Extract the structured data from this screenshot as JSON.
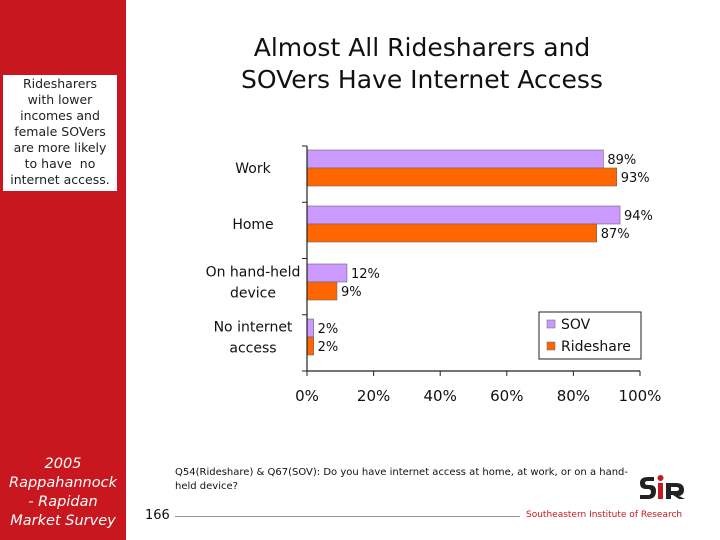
{
  "title_line1": "Almost All Ridesharers and",
  "title_line2": "SOVers Have Internet Access",
  "sidebar": {
    "note_lines": [
      "Ridesharers",
      "with lower",
      "incomes and",
      "female SOVers",
      "are more likely",
      "to have  no",
      "internet access."
    ],
    "survey_lines": [
      "2005",
      "Rappahannock",
      "- Rapidan",
      "Market Survey"
    ]
  },
  "footer": {
    "question": "Q54(Rideshare) & Q67(SOV): Do you have internet access at home, at work, or on a hand-held device?",
    "page_number": "166",
    "organization": "Southeastern Institute of Research"
  },
  "colors": {
    "sov": "#cc99ff",
    "rideshare": "#ff6600",
    "brand_red": "#c8171f"
  },
  "logo_icon": "sir-logo-icon",
  "chart_data": {
    "type": "bar",
    "orientation": "horizontal",
    "title": "Almost All Ridesharers and SOVers Have Internet Access",
    "categories": [
      {
        "lines": [
          "Work"
        ]
      },
      {
        "lines": [
          "Home"
        ]
      },
      {
        "lines": [
          "On hand-held",
          "device"
        ]
      },
      {
        "lines": [
          "No internet",
          "access"
        ]
      }
    ],
    "series": [
      {
        "name": "SOV",
        "color": "#cc99ff",
        "values": [
          89,
          94,
          12,
          2
        ],
        "labels": [
          "89%",
          "94%",
          "12%",
          "2%"
        ]
      },
      {
        "name": "Rideshare",
        "color": "#ff6600",
        "values": [
          93,
          87,
          9,
          2
        ],
        "labels": [
          "93%",
          "87%",
          "9%",
          "2%"
        ]
      }
    ],
    "xlim": [
      0,
      100
    ],
    "xticks": [
      "0%",
      "20%",
      "40%",
      "60%",
      "80%",
      "100%"
    ],
    "grid": false,
    "legend_position": "bottom-right"
  }
}
